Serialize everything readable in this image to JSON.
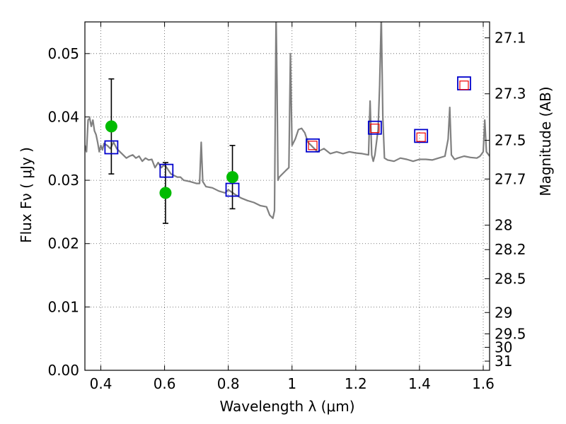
{
  "chart_data": {
    "type": "scatter",
    "title": "",
    "xlabel": "Wavelength  λ (μm)",
    "ylabel": "Flux  Fν  ( μJy )",
    "y2label": "Magnitude (AB)",
    "xlim": [
      0.35,
      1.62
    ],
    "ylim": [
      0.0,
      0.055
    ],
    "grid": true,
    "grid_style": "dotted",
    "x_ticks": [
      0.4,
      0.6,
      0.8,
      1.0,
      1.2,
      1.4,
      1.6
    ],
    "x_tick_labels": [
      "0.4",
      "0.6",
      "0.8",
      "1",
      "1.2",
      "1.4",
      "1.6"
    ],
    "y_ticks": [
      0.0,
      0.01,
      0.02,
      0.03,
      0.04,
      0.05
    ],
    "y_tick_labels": [
      "0.00",
      "0.01",
      "0.02",
      "0.03",
      "0.04",
      "0.05"
    ],
    "y2_ticks": [
      {
        "mag": 27.1,
        "label": "27.1"
      },
      {
        "mag": 27.3,
        "label": "27.3"
      },
      {
        "mag": 27.5,
        "label": "27.5"
      },
      {
        "mag": 27.7,
        "label": "27.7"
      },
      {
        "mag": 28.0,
        "label": "28"
      },
      {
        "mag": 28.2,
        "label": "28.2"
      },
      {
        "mag": 28.5,
        "label": "28.5"
      },
      {
        "mag": 29.0,
        "label": "29"
      },
      {
        "mag": 29.5,
        "label": "29.5"
      },
      {
        "mag": 30.0,
        "label": "30"
      },
      {
        "mag": 31.0,
        "label": "31"
      }
    ],
    "colors": {
      "model": "#808080",
      "observed": "#00bb00",
      "errorbar": "#000000",
      "synthetic": "#0000cc",
      "model_band": "#ee0000"
    },
    "series": [
      {
        "kind": "line",
        "x": [
          0.35,
          0.355,
          0.36,
          0.365,
          0.37,
          0.375,
          0.38,
          0.385,
          0.39,
          0.395,
          0.4,
          0.405,
          0.41,
          0.42,
          0.43,
          0.44,
          0.45,
          0.46,
          0.47,
          0.48,
          0.49,
          0.5,
          0.51,
          0.52,
          0.53,
          0.54,
          0.55,
          0.56,
          0.57,
          0.58,
          0.59,
          0.6,
          0.62,
          0.64,
          0.65,
          0.66,
          0.68,
          0.7,
          0.71,
          0.715,
          0.72,
          0.73,
          0.75,
          0.77,
          0.79,
          0.8,
          0.82,
          0.84,
          0.86,
          0.88,
          0.9,
          0.92,
          0.93,
          0.94,
          0.945,
          0.95,
          0.953,
          0.956,
          0.96,
          0.97,
          0.98,
          0.99,
          0.995,
          1.0,
          1.01,
          1.02,
          1.03,
          1.04,
          1.05,
          1.06,
          1.08,
          1.1,
          1.12,
          1.14,
          1.16,
          1.18,
          1.2,
          1.22,
          1.24,
          1.245,
          1.25,
          1.255,
          1.26,
          1.27,
          1.275,
          1.28,
          1.285,
          1.29,
          1.3,
          1.32,
          1.34,
          1.36,
          1.38,
          1.4,
          1.42,
          1.44,
          1.46,
          1.48,
          1.49,
          1.495,
          1.5,
          1.51,
          1.52,
          1.54,
          1.56,
          1.58,
          1.59,
          1.6,
          1.605,
          1.61,
          1.62
        ],
        "y": [
          0.0355,
          0.0345,
          0.0395,
          0.0398,
          0.0385,
          0.0395,
          0.0378,
          0.0372,
          0.036,
          0.0345,
          0.0355,
          0.0348,
          0.0358,
          0.0355,
          0.035,
          0.036,
          0.035,
          0.0345,
          0.034,
          0.0335,
          0.0338,
          0.034,
          0.0335,
          0.0338,
          0.033,
          0.0335,
          0.0332,
          0.0333,
          0.032,
          0.0328,
          0.032,
          0.0325,
          0.031,
          0.0305,
          0.0305,
          0.03,
          0.0298,
          0.0295,
          0.0295,
          0.036,
          0.0298,
          0.029,
          0.0288,
          0.0283,
          0.028,
          0.0285,
          0.0278,
          0.0272,
          0.0268,
          0.0265,
          0.026,
          0.0258,
          0.0245,
          0.024,
          0.0252,
          0.056,
          0.045,
          0.03,
          0.0305,
          0.031,
          0.0315,
          0.032,
          0.05,
          0.0355,
          0.0365,
          0.038,
          0.0382,
          0.0375,
          0.036,
          0.0355,
          0.0345,
          0.035,
          0.0342,
          0.0345,
          0.0342,
          0.0345,
          0.0343,
          0.0342,
          0.034,
          0.0425,
          0.034,
          0.033,
          0.034,
          0.038,
          0.045,
          0.056,
          0.04,
          0.0335,
          0.0332,
          0.033,
          0.0335,
          0.0333,
          0.033,
          0.0333,
          0.0333,
          0.0332,
          0.0335,
          0.0338,
          0.0365,
          0.0415,
          0.034,
          0.0333,
          0.0335,
          0.0338,
          0.0336,
          0.0335,
          0.0338,
          0.0345,
          0.0395,
          0.0345,
          0.0338
        ]
      },
      {
        "kind": "points",
        "x": [
          0.433,
          0.603,
          0.813
        ],
        "y": [
          0.0385,
          0.028,
          0.0305
        ],
        "yerr": [
          0.0075,
          0.0048,
          0.005
        ]
      },
      {
        "kind": "open-squares",
        "x": [
          0.433,
          0.606,
          0.813,
          1.065,
          1.26,
          1.405,
          1.54
        ],
        "y": [
          0.0352,
          0.0315,
          0.0285,
          0.0355,
          0.0383,
          0.037,
          0.0453
        ]
      },
      {
        "kind": "small-squares",
        "x": [
          1.065,
          1.26,
          1.405,
          1.54
        ],
        "y": [
          0.0355,
          0.0382,
          0.0368,
          0.045
        ]
      }
    ]
  }
}
